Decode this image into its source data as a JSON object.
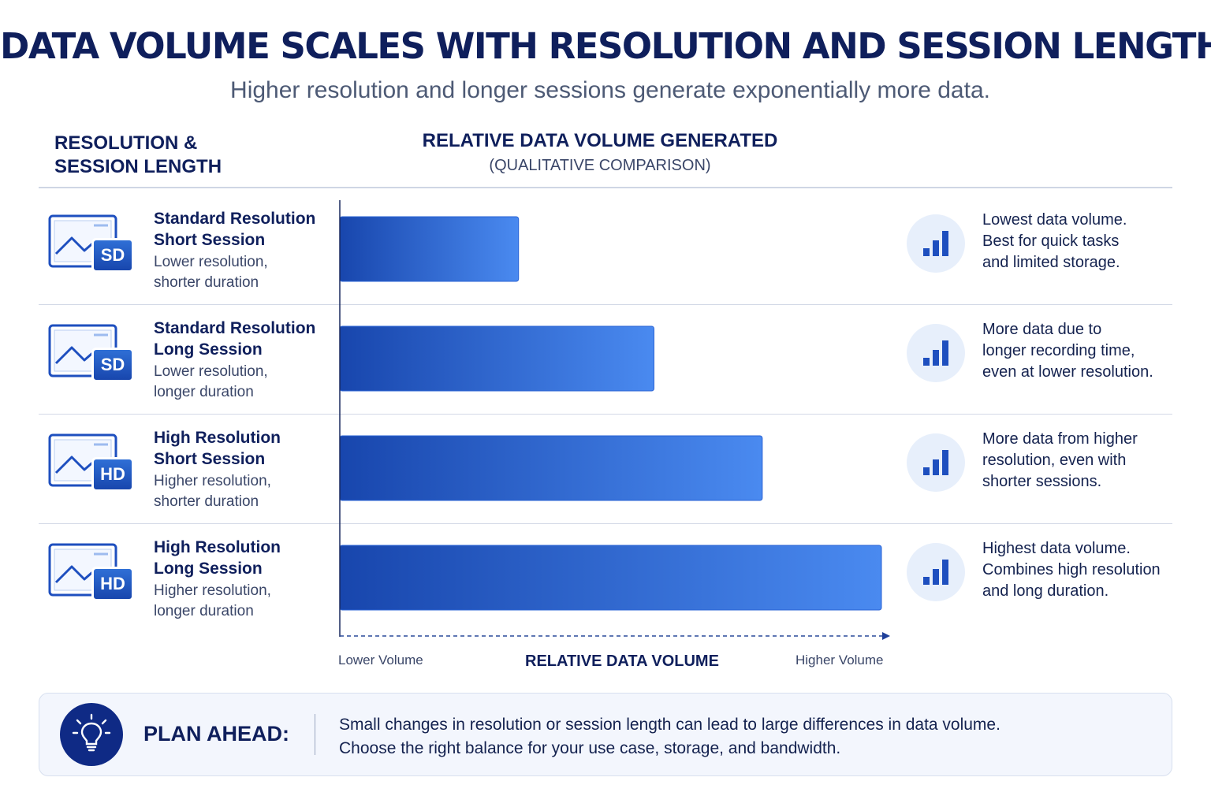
{
  "title": "DATA VOLUME SCALES WITH RESOLUTION AND SESSION LENGTH",
  "subtitle": "Higher resolution and longer sessions generate exponentially more data.",
  "column_headers": {
    "left": "RESOLUTION &\nSESSION LENGTH",
    "center": "RELATIVE DATA VOLUME GENERATED",
    "center_sub": "(QUALITATIVE COMPARISON)"
  },
  "rows": [
    {
      "badge": "SD",
      "title": "Standard Resolution\nShort Session",
      "description": "Lower resolution,\nshorter duration",
      "note": "Lowest data volume.\nBest for quick tasks\nand limited storage.",
      "icon": "monitor-image-icon",
      "note_icon": "bar-chart-icon"
    },
    {
      "badge": "SD",
      "title": "Standard Resolution\nLong Session",
      "description": "Lower resolution,\nlonger duration",
      "note": "More data due to\nlonger recording time,\neven at lower resolution.",
      "icon": "monitor-image-icon",
      "note_icon": "bar-chart-icon"
    },
    {
      "badge": "HD",
      "title": "High Resolution\nShort Session",
      "description": "Higher resolution,\nshorter duration",
      "note": "More data from higher\nresolution, even with\nshorter sessions.",
      "icon": "monitor-image-icon",
      "note_icon": "bar-chart-icon"
    },
    {
      "badge": "HD",
      "title": "High Resolution\nLong Session",
      "description": "Higher resolution,\nlonger duration",
      "note": "Highest data volume.\nCombines high resolution\nand long duration.",
      "icon": "monitor-image-icon",
      "note_icon": "bar-chart-icon"
    }
  ],
  "chart_data": {
    "type": "bar",
    "orientation": "horizontal",
    "categories": [
      "Standard Resolution Short Session",
      "Standard Resolution Long Session",
      "High Resolution Short Session",
      "High Resolution Long Session"
    ],
    "values": [
      33,
      58,
      78,
      100
    ],
    "value_scale": "qualitative (relative, 0-100)",
    "xlabel": "RELATIVE DATA VOLUME",
    "x_min_label": "Lower Volume",
    "x_max_label": "Higher Volume",
    "xlim": [
      0,
      100
    ],
    "grid": false,
    "colors": {
      "bar_start": "#1846ad",
      "bar_end": "#4a8af0",
      "axis": "#1a2a5e"
    }
  },
  "plan": {
    "icon": "lightbulb-icon",
    "label": "PLAN AHEAD:",
    "text": "Small changes in resolution or session length can lead to large differences in data volume.\nChoose the right balance for your use case, storage, and bandwidth."
  }
}
